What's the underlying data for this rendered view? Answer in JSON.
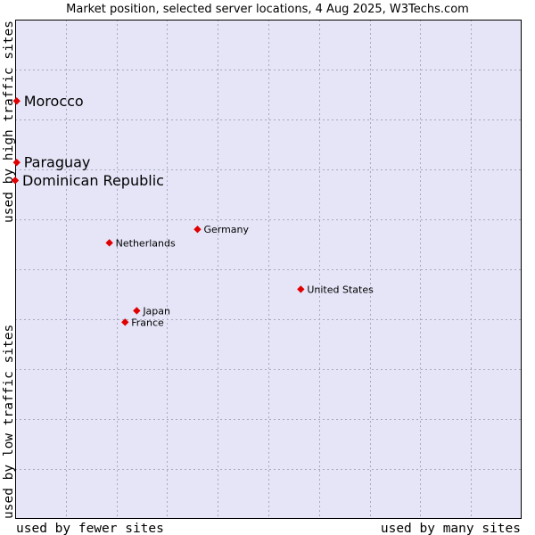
{
  "chart_data": {
    "type": "scatter",
    "title": "Market position, selected server locations, 4 Aug 2025, W3Techs.com",
    "xlabel_left": "used by fewer sites",
    "xlabel_right": "used by many sites",
    "ylabel_bottom": "used by low traffic sites",
    "ylabel_top": "used by high traffic sites",
    "xlim": [
      0,
      100
    ],
    "ylim": [
      0,
      100
    ],
    "grid": true,
    "colors": {
      "plot_bg": "#e5e5f7",
      "grid": "#a8a8c0",
      "border": "#000000",
      "marker": "#e00000"
    },
    "points": [
      {
        "name": "Morocco",
        "x": 0.3,
        "y": 83.7,
        "emphasis": true
      },
      {
        "name": "Paraguay",
        "x": 0.3,
        "y": 71.4,
        "emphasis": true
      },
      {
        "name": "Dominican Republic",
        "x": 0.0,
        "y": 67.8,
        "emphasis": true
      },
      {
        "name": "Germany",
        "x": 36.0,
        "y": 58.0,
        "emphasis": false
      },
      {
        "name": "Netherlands",
        "x": 18.6,
        "y": 55.3,
        "emphasis": false
      },
      {
        "name": "United States",
        "x": 56.4,
        "y": 46.0,
        "emphasis": false
      },
      {
        "name": "Japan",
        "x": 24.0,
        "y": 41.7,
        "emphasis": false
      },
      {
        "name": "France",
        "x": 21.7,
        "y": 39.4,
        "emphasis": false
      }
    ]
  }
}
